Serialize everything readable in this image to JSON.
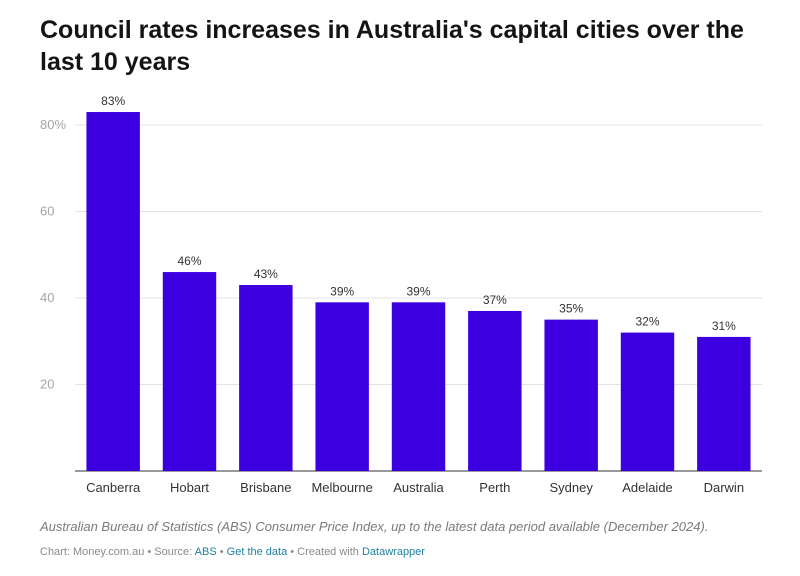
{
  "title": "Council rates increases in Australia's capital cities over the last 10 years",
  "note": "Australian Bureau of Statistics (ABS) Consumer Price Index, up to the latest data period available (December 2024).",
  "footer": {
    "chart_prefix": "Chart: Money.com.au • Source: ",
    "source_link": "ABS",
    "sep1": " • ",
    "data_link": "Get the data",
    "sep2": " • Created with ",
    "tool_link": "Datawrapper"
  },
  "colors": {
    "bar": "#3c00e0",
    "link": "#1d81a2",
    "grid": "#e3e3e3",
    "axis": "#333333"
  },
  "chart_data": {
    "type": "bar",
    "title": "Council rates increases in Australia's capital cities over the last 10 years",
    "categories": [
      "Canberra",
      "Hobart",
      "Brisbane",
      "Melbourne",
      "Australia",
      "Perth",
      "Sydney",
      "Adelaide",
      "Darwin"
    ],
    "values": [
      83,
      46,
      43,
      39,
      39,
      37,
      35,
      32,
      31
    ],
    "value_labels": [
      "83%",
      "46%",
      "43%",
      "39%",
      "39%",
      "37%",
      "35%",
      "32%",
      "31%"
    ],
    "ylim": [
      0,
      80
    ],
    "yticks": [
      20,
      40,
      60,
      80
    ],
    "ytick_labels": [
      "20",
      "40",
      "60",
      "80%"
    ],
    "grid": true,
    "xlabel": "",
    "ylabel": ""
  }
}
